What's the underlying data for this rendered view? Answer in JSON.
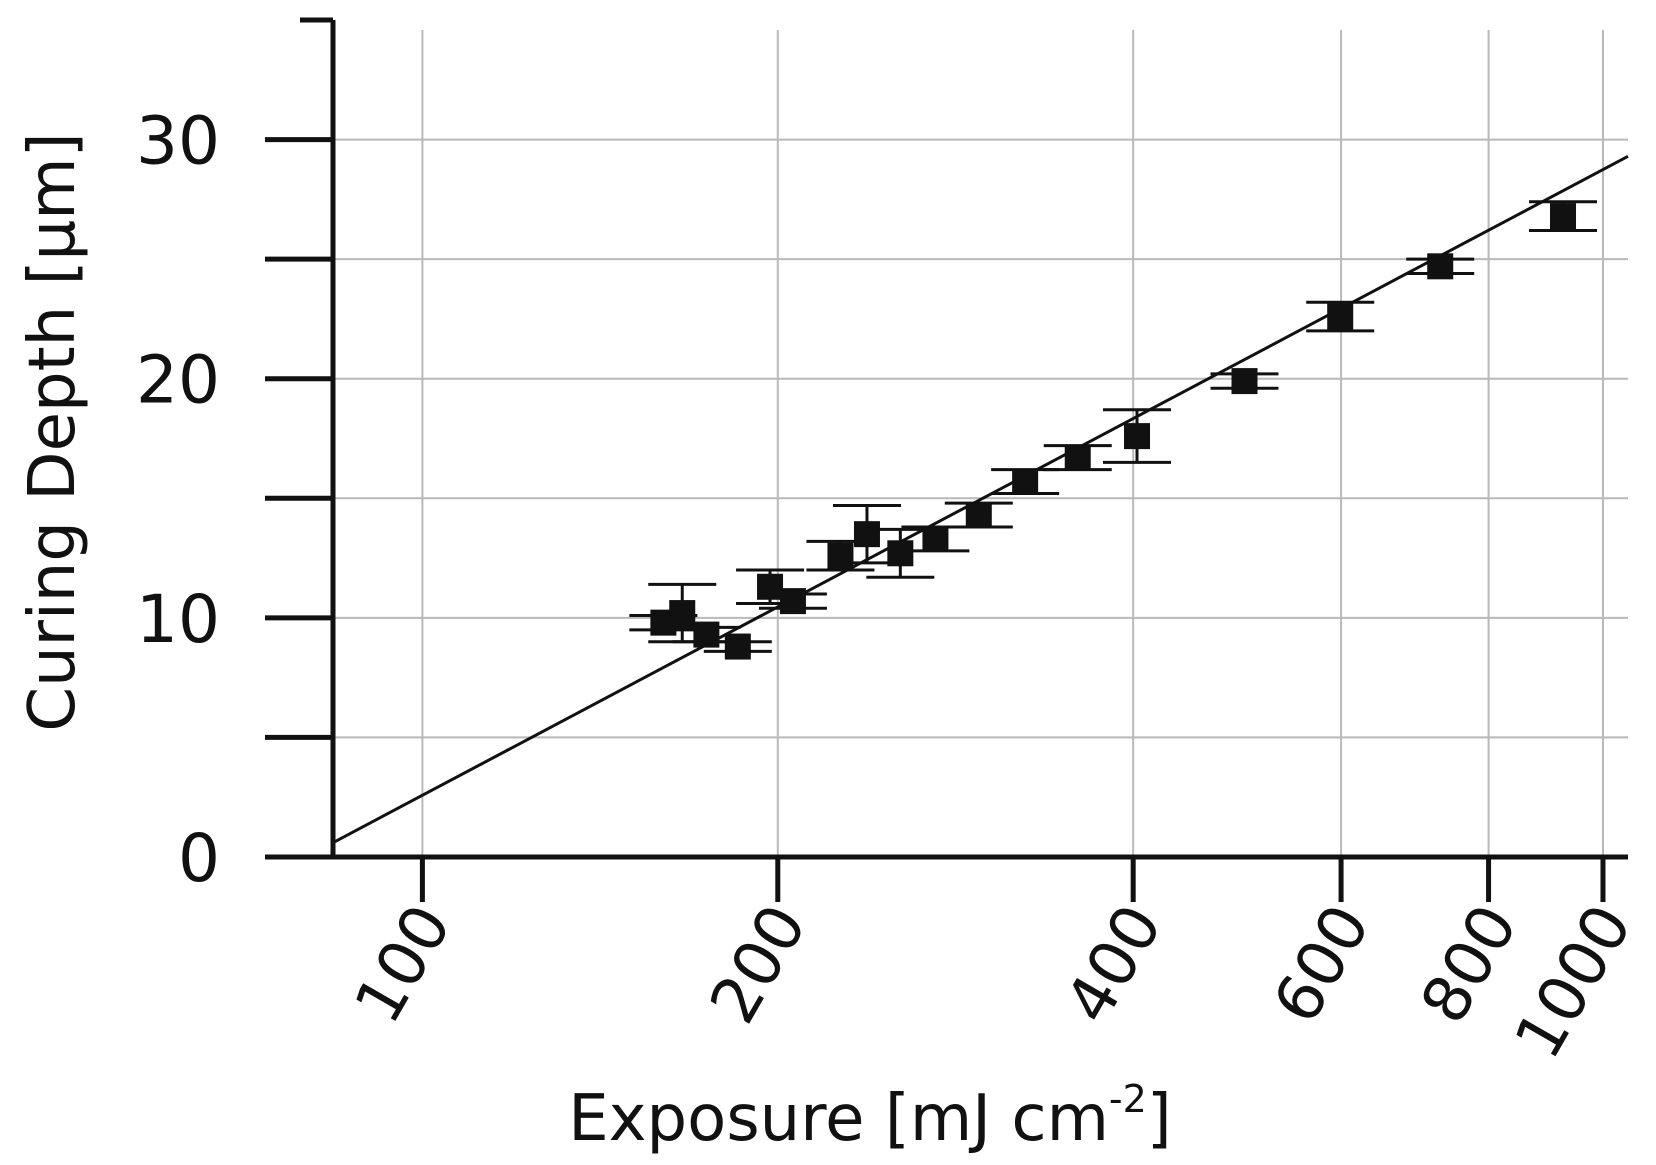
{
  "chart_data": {
    "type": "scatter",
    "title": "",
    "xlabel": "Exposure [mJ cm",
    "xlabel_superscript": "-2",
    "xlabel_end": "]",
    "ylabel": "Curing Depth [µm]",
    "x_scale": "log",
    "xlim": [
      84,
      1050
    ],
    "ylim": [
      0,
      35
    ],
    "grid": true,
    "x_ticks": [
      100,
      200,
      400,
      600,
      800,
      1000
    ],
    "x_tick_labels": [
      "100",
      "200",
      "400",
      "600",
      "800",
      "1000"
    ],
    "y_ticks": [
      0,
      5,
      10,
      15,
      20,
      25,
      30
    ],
    "y_tick_labels": [
      "0",
      "",
      "10",
      "",
      "20",
      "",
      "30"
    ],
    "series": [
      {
        "marker": "square",
        "color": "#111111",
        "points": [
          {
            "x": 160,
            "y": 9.8,
            "err": 0.3
          },
          {
            "x": 166,
            "y": 10.2,
            "err": 1.2
          },
          {
            "x": 174,
            "y": 9.3,
            "err": 0.3
          },
          {
            "x": 185,
            "y": 8.8,
            "err": 0.2
          },
          {
            "x": 197,
            "y": 11.3,
            "err": 0.7
          },
          {
            "x": 206,
            "y": 10.7,
            "err": 0.3
          },
          {
            "x": 226,
            "y": 12.6,
            "err": 0.6
          },
          {
            "x": 238,
            "y": 13.5,
            "err": 1.2
          },
          {
            "x": 254,
            "y": 12.7,
            "err": 1.0
          },
          {
            "x": 272,
            "y": 13.3,
            "err": 0.5
          },
          {
            "x": 296,
            "y": 14.3,
            "err": 0.5
          },
          {
            "x": 324,
            "y": 15.7,
            "err": 0.5
          },
          {
            "x": 359,
            "y": 16.7,
            "err": 0.5
          },
          {
            "x": 403,
            "y": 17.6,
            "err": 1.1
          },
          {
            "x": 497,
            "y": 19.9,
            "err": 0.3
          },
          {
            "x": 599,
            "y": 22.6,
            "err": 0.6
          },
          {
            "x": 728,
            "y": 24.7,
            "err": 0.3
          },
          {
            "x": 925,
            "y": 26.8,
            "err": 0.6
          }
        ]
      }
    ],
    "fit_line": [
      {
        "x": 84,
        "y": 0.6
      },
      {
        "x": 1050,
        "y": 29.3
      }
    ]
  }
}
